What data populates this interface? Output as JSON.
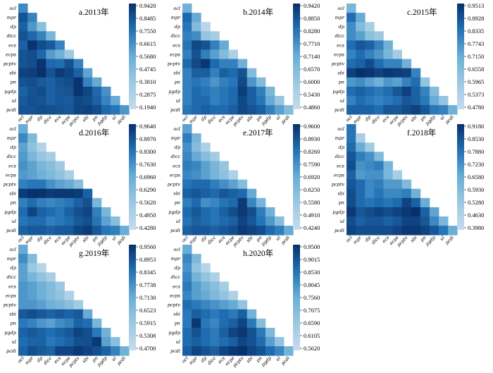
{
  "figure": {
    "background": "#ffffff"
  },
  "chart_data": [
    {
      "type": "heatmap",
      "title": "a.2013年",
      "variables": [
        "ocl",
        "mpr",
        "dp",
        "dicc",
        "ecs",
        "ecps",
        "pcptv",
        "sbi",
        "pn",
        "pgdp",
        "ul",
        "pcdi"
      ],
      "colorbar_ticks": [
        "0.9420",
        "0.8485",
        "0.7550",
        "0.6615",
        "0.5680",
        "0.4745",
        "0.3810",
        "0.2875",
        "0.1940"
      ],
      "vmin": 0.194,
      "vmax": 0.942,
      "values": [
        [
          0.68
        ],
        [
          0.84,
          0.7
        ],
        [
          0.8,
          0.64,
          0.45
        ],
        [
          0.84,
          0.78,
          0.7,
          0.52
        ],
        [
          0.8,
          0.93,
          0.86,
          0.82,
          0.7
        ],
        [
          0.84,
          0.86,
          0.78,
          0.62,
          0.55,
          0.38
        ],
        [
          0.84,
          0.86,
          0.93,
          0.78,
          0.76,
          0.84,
          0.7
        ],
        [
          0.89,
          0.9,
          0.94,
          0.84,
          0.91,
          0.88,
          0.8,
          0.6
        ],
        [
          0.84,
          0.86,
          0.82,
          0.8,
          0.84,
          0.86,
          0.93,
          0.7,
          0.58
        ],
        [
          0.8,
          0.84,
          0.86,
          0.8,
          0.83,
          0.84,
          0.93,
          0.88,
          0.78,
          0.66
        ],
        [
          0.82,
          0.85,
          0.84,
          0.8,
          0.83,
          0.82,
          0.88,
          0.86,
          0.8,
          0.7,
          0.58
        ],
        [
          0.84,
          0.84,
          0.86,
          0.85,
          0.84,
          0.83,
          0.88,
          0.89,
          0.86,
          0.78,
          0.74,
          0.64
        ]
      ]
    },
    {
      "type": "heatmap",
      "title": "b.2014年",
      "variables": [
        "ocl",
        "mpr",
        "dp",
        "dicc",
        "ecs",
        "ecps",
        "pcptv",
        "sbi",
        "pn",
        "pgdp",
        "ul",
        "pcdi"
      ],
      "colorbar_ticks": [
        "0.9420",
        "0.8850",
        "0.8280",
        "0.7710",
        "0.7140",
        "0.6570",
        "0.6000",
        "0.5430",
        "0.4860"
      ],
      "vmin": 0.486,
      "vmax": 0.942,
      "values": [
        [
          0.7
        ],
        [
          0.84,
          0.72
        ],
        [
          0.82,
          0.66,
          0.52
        ],
        [
          0.8,
          0.78,
          0.62,
          0.58
        ],
        [
          0.82,
          0.9,
          0.88,
          0.8,
          0.72
        ],
        [
          0.8,
          0.88,
          0.8,
          0.74,
          0.66,
          0.56
        ],
        [
          0.84,
          0.9,
          0.93,
          0.84,
          0.8,
          0.8,
          0.7
        ],
        [
          0.8,
          0.86,
          0.86,
          0.8,
          0.86,
          0.84,
          0.88,
          0.66
        ],
        [
          0.8,
          0.82,
          0.8,
          0.76,
          0.8,
          0.82,
          0.9,
          0.76,
          0.66
        ],
        [
          0.8,
          0.84,
          0.82,
          0.8,
          0.82,
          0.84,
          0.92,
          0.86,
          0.8,
          0.68
        ],
        [
          0.8,
          0.84,
          0.84,
          0.8,
          0.82,
          0.84,
          0.9,
          0.86,
          0.82,
          0.72,
          0.62
        ],
        [
          0.82,
          0.84,
          0.86,
          0.84,
          0.84,
          0.86,
          0.9,
          0.88,
          0.86,
          0.8,
          0.74,
          0.66
        ]
      ]
    },
    {
      "type": "heatmap",
      "title": "c.2015年",
      "variables": [
        "ocl",
        "mpr",
        "dp",
        "dicc",
        "ecs",
        "ecps",
        "pcptv",
        "sbi",
        "pn",
        "pgdp",
        "ul",
        "pcdi"
      ],
      "colorbar_ticks": [
        "0.9513",
        "0.8928",
        "0.8335",
        "0.7743",
        "0.7150",
        "0.6558",
        "0.5965",
        "0.5373",
        "0.4780"
      ],
      "vmin": 0.478,
      "vmax": 0.9513,
      "values": [
        [
          0.68
        ],
        [
          0.84,
          0.72
        ],
        [
          0.78,
          0.66,
          0.56
        ],
        [
          0.78,
          0.74,
          0.64,
          0.6
        ],
        [
          0.84,
          0.88,
          0.86,
          0.8,
          0.7
        ],
        [
          0.8,
          0.84,
          0.8,
          0.76,
          0.68,
          0.58
        ],
        [
          0.84,
          0.86,
          0.9,
          0.84,
          0.8,
          0.8,
          0.7
        ],
        [
          0.92,
          0.95,
          0.94,
          0.92,
          0.94,
          0.93,
          0.92,
          0.8
        ],
        [
          0.76,
          0.78,
          0.74,
          0.7,
          0.76,
          0.74,
          0.8,
          0.84,
          0.62
        ],
        [
          0.84,
          0.86,
          0.84,
          0.82,
          0.84,
          0.88,
          0.92,
          0.86,
          0.8,
          0.66
        ],
        [
          0.8,
          0.84,
          0.82,
          0.8,
          0.82,
          0.84,
          0.88,
          0.86,
          0.82,
          0.72,
          0.62
        ],
        [
          0.86,
          0.86,
          0.86,
          0.84,
          0.88,
          0.88,
          0.9,
          0.92,
          0.88,
          0.82,
          0.8,
          0.7
        ]
      ]
    },
    {
      "type": "heatmap",
      "title": "d.2016年",
      "variables": [
        "ocl",
        "mpr",
        "dp",
        "dicc",
        "ecs",
        "ecps",
        "pcptv",
        "sbi",
        "pn",
        "pgdp",
        "ul",
        "pcdi"
      ],
      "colorbar_ticks": [
        "0.9640",
        "0.8970",
        "0.8300",
        "0.7630",
        "0.6960",
        "0.6290",
        "0.5620",
        "0.4950",
        "0.4280"
      ],
      "vmin": 0.428,
      "vmax": 0.964,
      "values": [
        [
          0.7
        ],
        [
          0.78,
          0.64
        ],
        [
          0.72,
          0.6,
          0.5
        ],
        [
          0.74,
          0.66,
          0.58,
          0.54
        ],
        [
          0.76,
          0.72,
          0.66,
          0.62,
          0.56
        ],
        [
          0.74,
          0.72,
          0.68,
          0.64,
          0.6,
          0.52
        ],
        [
          0.8,
          0.82,
          0.82,
          0.76,
          0.72,
          0.7,
          0.62
        ],
        [
          0.94,
          0.96,
          0.96,
          0.94,
          0.95,
          0.95,
          0.94,
          0.86
        ],
        [
          0.8,
          0.84,
          0.8,
          0.78,
          0.8,
          0.82,
          0.86,
          0.9,
          0.66
        ],
        [
          0.84,
          0.92,
          0.86,
          0.84,
          0.82,
          0.86,
          0.9,
          0.92,
          0.8,
          0.66
        ],
        [
          0.82,
          0.84,
          0.84,
          0.8,
          0.82,
          0.84,
          0.88,
          0.9,
          0.82,
          0.72,
          0.62
        ],
        [
          0.86,
          0.88,
          0.88,
          0.86,
          0.88,
          0.88,
          0.92,
          0.94,
          0.88,
          0.82,
          0.8,
          0.7
        ]
      ]
    },
    {
      "type": "heatmap",
      "title": "e.2017年",
      "variables": [
        "ocl",
        "mpr",
        "dp",
        "dicc",
        "ecs",
        "ecps",
        "pcptv",
        "sbi",
        "pn",
        "pgdp",
        "ul",
        "pcdi"
      ],
      "colorbar_ticks": [
        "0.9600",
        "0.8930",
        "0.8260",
        "0.7590",
        "0.6920",
        "0.6250",
        "0.5580",
        "0.4910",
        "0.4240"
      ],
      "vmin": 0.424,
      "vmax": 0.96,
      "values": [
        [
          0.72
        ],
        [
          0.8,
          0.66
        ],
        [
          0.76,
          0.62,
          0.5
        ],
        [
          0.78,
          0.7,
          0.62,
          0.54
        ],
        [
          0.8,
          0.78,
          0.72,
          0.66,
          0.58
        ],
        [
          0.78,
          0.76,
          0.72,
          0.66,
          0.6,
          0.5
        ],
        [
          0.82,
          0.84,
          0.84,
          0.8,
          0.76,
          0.72,
          0.62
        ],
        [
          0.86,
          0.88,
          0.86,
          0.84,
          0.88,
          0.86,
          0.84,
          0.7
        ],
        [
          0.8,
          0.84,
          0.76,
          0.78,
          0.82,
          0.84,
          0.94,
          0.78,
          0.66
        ],
        [
          0.84,
          0.88,
          0.84,
          0.82,
          0.86,
          0.9,
          0.94,
          0.9,
          0.8,
          0.68
        ],
        [
          0.82,
          0.86,
          0.84,
          0.82,
          0.84,
          0.86,
          0.92,
          0.88,
          0.82,
          0.74,
          0.62
        ],
        [
          0.86,
          0.88,
          0.88,
          0.86,
          0.88,
          0.9,
          0.94,
          0.92,
          0.9,
          0.84,
          0.8,
          0.7
        ]
      ]
    },
    {
      "type": "heatmap",
      "title": "f.2018年",
      "variables": [
        "ocl",
        "mpr",
        "dp",
        "dicc",
        "ecs",
        "ecps",
        "pcptv",
        "sbi",
        "pn",
        "pgdp",
        "ul",
        "pcdi"
      ],
      "colorbar_ticks": [
        "0.9180",
        "0.8530",
        "0.7880",
        "0.7230",
        "0.6580",
        "0.5930",
        "0.5280",
        "0.4630",
        "0.3980"
      ],
      "vmin": 0.398,
      "vmax": 0.918,
      "values": [
        [
          0.78
        ],
        [
          0.78,
          0.5
        ],
        [
          0.8,
          0.66,
          0.52
        ],
        [
          0.84,
          0.76,
          0.72,
          0.6
        ],
        [
          0.86,
          0.72,
          0.74,
          0.76,
          0.62
        ],
        [
          0.82,
          0.7,
          0.72,
          0.72,
          0.62,
          0.5
        ],
        [
          0.84,
          0.8,
          0.74,
          0.76,
          0.7,
          0.7,
          0.6
        ],
        [
          0.86,
          0.8,
          0.74,
          0.78,
          0.74,
          0.74,
          0.76,
          0.64
        ],
        [
          0.86,
          0.8,
          0.78,
          0.8,
          0.78,
          0.8,
          0.88,
          0.82,
          0.66
        ],
        [
          0.9,
          0.84,
          0.86,
          0.88,
          0.86,
          0.88,
          0.9,
          0.92,
          0.82,
          0.68
        ],
        [
          0.86,
          0.82,
          0.84,
          0.84,
          0.82,
          0.84,
          0.88,
          0.88,
          0.84,
          0.74,
          0.62
        ],
        [
          0.88,
          0.86,
          0.86,
          0.86,
          0.86,
          0.88,
          0.9,
          0.9,
          0.88,
          0.84,
          0.78,
          0.66
        ]
      ]
    },
    {
      "type": "heatmap",
      "title": "g.2019年",
      "variables": [
        "ocl",
        "mpr",
        "dp",
        "dicc",
        "ecs",
        "ecps",
        "pcptv",
        "sbi",
        "pn",
        "pgdp",
        "ul",
        "pcdi"
      ],
      "colorbar_ticks": [
        "0.9560",
        "0.8953",
        "0.8345",
        "0.7738",
        "0.7130",
        "0.6523",
        "0.5915",
        "0.5308",
        "0.4700"
      ],
      "vmin": 0.47,
      "vmax": 0.956,
      "values": [
        [
          0.72
        ],
        [
          0.78,
          0.66
        ],
        [
          0.74,
          0.6,
          0.52
        ],
        [
          0.74,
          0.68,
          0.62,
          0.56
        ],
        [
          0.76,
          0.74,
          0.7,
          0.66,
          0.6
        ],
        [
          0.76,
          0.74,
          0.7,
          0.66,
          0.62,
          0.54
        ],
        [
          0.76,
          0.76,
          0.74,
          0.7,
          0.68,
          0.64,
          0.58
        ],
        [
          0.88,
          0.9,
          0.88,
          0.86,
          0.88,
          0.86,
          0.88,
          0.72
        ],
        [
          0.82,
          0.8,
          0.76,
          0.74,
          0.78,
          0.8,
          0.86,
          0.84,
          0.68
        ],
        [
          0.86,
          0.88,
          0.86,
          0.84,
          0.86,
          0.88,
          0.92,
          0.9,
          0.82,
          0.7
        ],
        [
          0.84,
          0.86,
          0.86,
          0.82,
          0.84,
          0.86,
          0.9,
          0.9,
          0.94,
          0.74,
          0.64
        ],
        [
          0.86,
          0.9,
          0.88,
          0.86,
          0.92,
          0.92,
          0.94,
          0.92,
          0.9,
          0.86,
          0.8,
          0.7
        ]
      ]
    },
    {
      "type": "heatmap",
      "title": "h.2020年",
      "variables": [
        "ocl",
        "mpr",
        "dp",
        "dicc",
        "ecs",
        "ecps",
        "pcptv",
        "sbi",
        "pn",
        "pgdp",
        "ul",
        "pcdi"
      ],
      "colorbar_ticks": [
        "0.9500",
        "0.9015",
        "0.8530",
        "0.8045",
        "0.7560",
        "0.7075",
        "0.6590",
        "0.6105",
        "0.5620"
      ],
      "vmin": 0.562,
      "vmax": 0.95,
      "values": [
        [
          0.76
        ],
        [
          0.82,
          0.72
        ],
        [
          0.8,
          0.68,
          0.6
        ],
        [
          0.82,
          0.74,
          0.68,
          0.62
        ],
        [
          0.84,
          0.78,
          0.74,
          0.7,
          0.64
        ],
        [
          0.82,
          0.78,
          0.76,
          0.72,
          0.68,
          0.62
        ],
        [
          0.86,
          0.84,
          0.82,
          0.8,
          0.78,
          0.76,
          0.68
        ],
        [
          0.84,
          0.88,
          0.86,
          0.84,
          0.86,
          0.84,
          0.88,
          0.74
        ],
        [
          0.84,
          0.94,
          0.84,
          0.82,
          0.86,
          0.88,
          0.92,
          0.84,
          0.7
        ],
        [
          0.86,
          0.9,
          0.86,
          0.84,
          0.88,
          0.92,
          0.94,
          0.9,
          0.84,
          0.72
        ],
        [
          0.86,
          0.88,
          0.86,
          0.84,
          0.86,
          0.88,
          0.92,
          0.9,
          0.86,
          0.78,
          0.68
        ],
        [
          0.88,
          0.92,
          0.9,
          0.88,
          0.92,
          0.94,
          0.95,
          0.92,
          0.9,
          0.86,
          0.82,
          0.74
        ]
      ]
    }
  ]
}
